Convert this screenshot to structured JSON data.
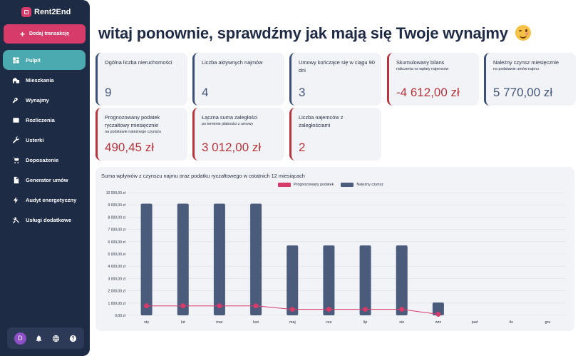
{
  "app": {
    "name": "Rent2End"
  },
  "sidebar": {
    "add_button": "Dodaj transakcję",
    "items": [
      {
        "label": "Pulpit",
        "icon": "dashboard-icon",
        "active": true
      },
      {
        "label": "Mieszkania",
        "icon": "apartment-icon"
      },
      {
        "label": "Wynajmy",
        "icon": "key-icon"
      },
      {
        "label": "Rozliczenia",
        "icon": "wallet-icon"
      },
      {
        "label": "Usterki",
        "icon": "wrench-icon"
      },
      {
        "label": "Doposażenie",
        "icon": "cart-icon"
      },
      {
        "label": "Generator umów",
        "icon": "document-icon"
      },
      {
        "label": "Audyt energetyczny",
        "icon": "bolt-icon"
      },
      {
        "label": "Usługi dodatkowe",
        "icon": "tools-icon"
      }
    ],
    "user_initial": "D"
  },
  "main": {
    "greeting": "witaj ponownie, sprawdźmy jak mają się Twoje wynajmy",
    "cards": [
      {
        "title": "Ogólna liczba nieruchomości",
        "sub": "",
        "value": "9",
        "variant": "blue"
      },
      {
        "title": "Liczba aktywnych najmów",
        "sub": "",
        "value": "4",
        "variant": "blue"
      },
      {
        "title": "Umowy kończące się w ciągu 90 dni",
        "sub": "",
        "value": "3",
        "variant": "blue"
      },
      {
        "title": "Skumulowany bilans",
        "sub": "naliczenia vs wpłaty najemców",
        "value": "-4 612,00 zł",
        "variant": "red"
      },
      {
        "title": "Należny czynsz miesięcznie",
        "sub": "na podstawie umów najmu",
        "value": "5 770,00 zł",
        "variant": "blue"
      },
      {
        "title": "Prognozowany podatek ryczałtowy miesięcznie",
        "sub": "na podstawie należnego czynszu",
        "value": "490,45 zł",
        "variant": "red"
      },
      {
        "title": "Łączna suma zaległości",
        "sub": "po terminie płatności z umowy",
        "value": "3 012,00 zł",
        "variant": "red"
      },
      {
        "title": "Liczba najemców z zaległościami",
        "sub": "",
        "value": "2",
        "variant": "red"
      }
    ]
  },
  "chart_data": {
    "type": "bar",
    "title": "Suma wpływów z czynszu najmu oraz podatku ryczałtowego w ostatnich 12 miesiącach",
    "categories": [
      "sty",
      "lut",
      "mar",
      "kwi",
      "maj",
      "cze",
      "lip",
      "sie",
      "wrz",
      "paź",
      "lis",
      "gru"
    ],
    "series": [
      {
        "name": "Prognozowany podatek",
        "kind": "line",
        "color": "#d63b6a",
        "values": [
          770,
          770,
          770,
          770,
          490,
          490,
          490,
          490,
          90,
          null,
          null,
          null
        ]
      },
      {
        "name": "Należny czynsz",
        "kind": "bar",
        "color": "#4a5b7c",
        "values": [
          9100,
          9100,
          9100,
          9100,
          5700,
          5700,
          5700,
          5700,
          1050,
          0,
          0,
          0
        ]
      }
    ],
    "yticks": [
      "0,00 zł",
      "1 000,00 zł",
      "2 000,00 zł",
      "3 000,00 zł",
      "4 000,00 zł",
      "5 000,00 zł",
      "6 000,00 zł",
      "7 000,00 zł",
      "8 000,00 zł",
      "9 000,00 zł",
      "10 000,00 zł"
    ],
    "ylim": [
      0,
      10000
    ],
    "grid": true,
    "legend": "top-center"
  }
}
